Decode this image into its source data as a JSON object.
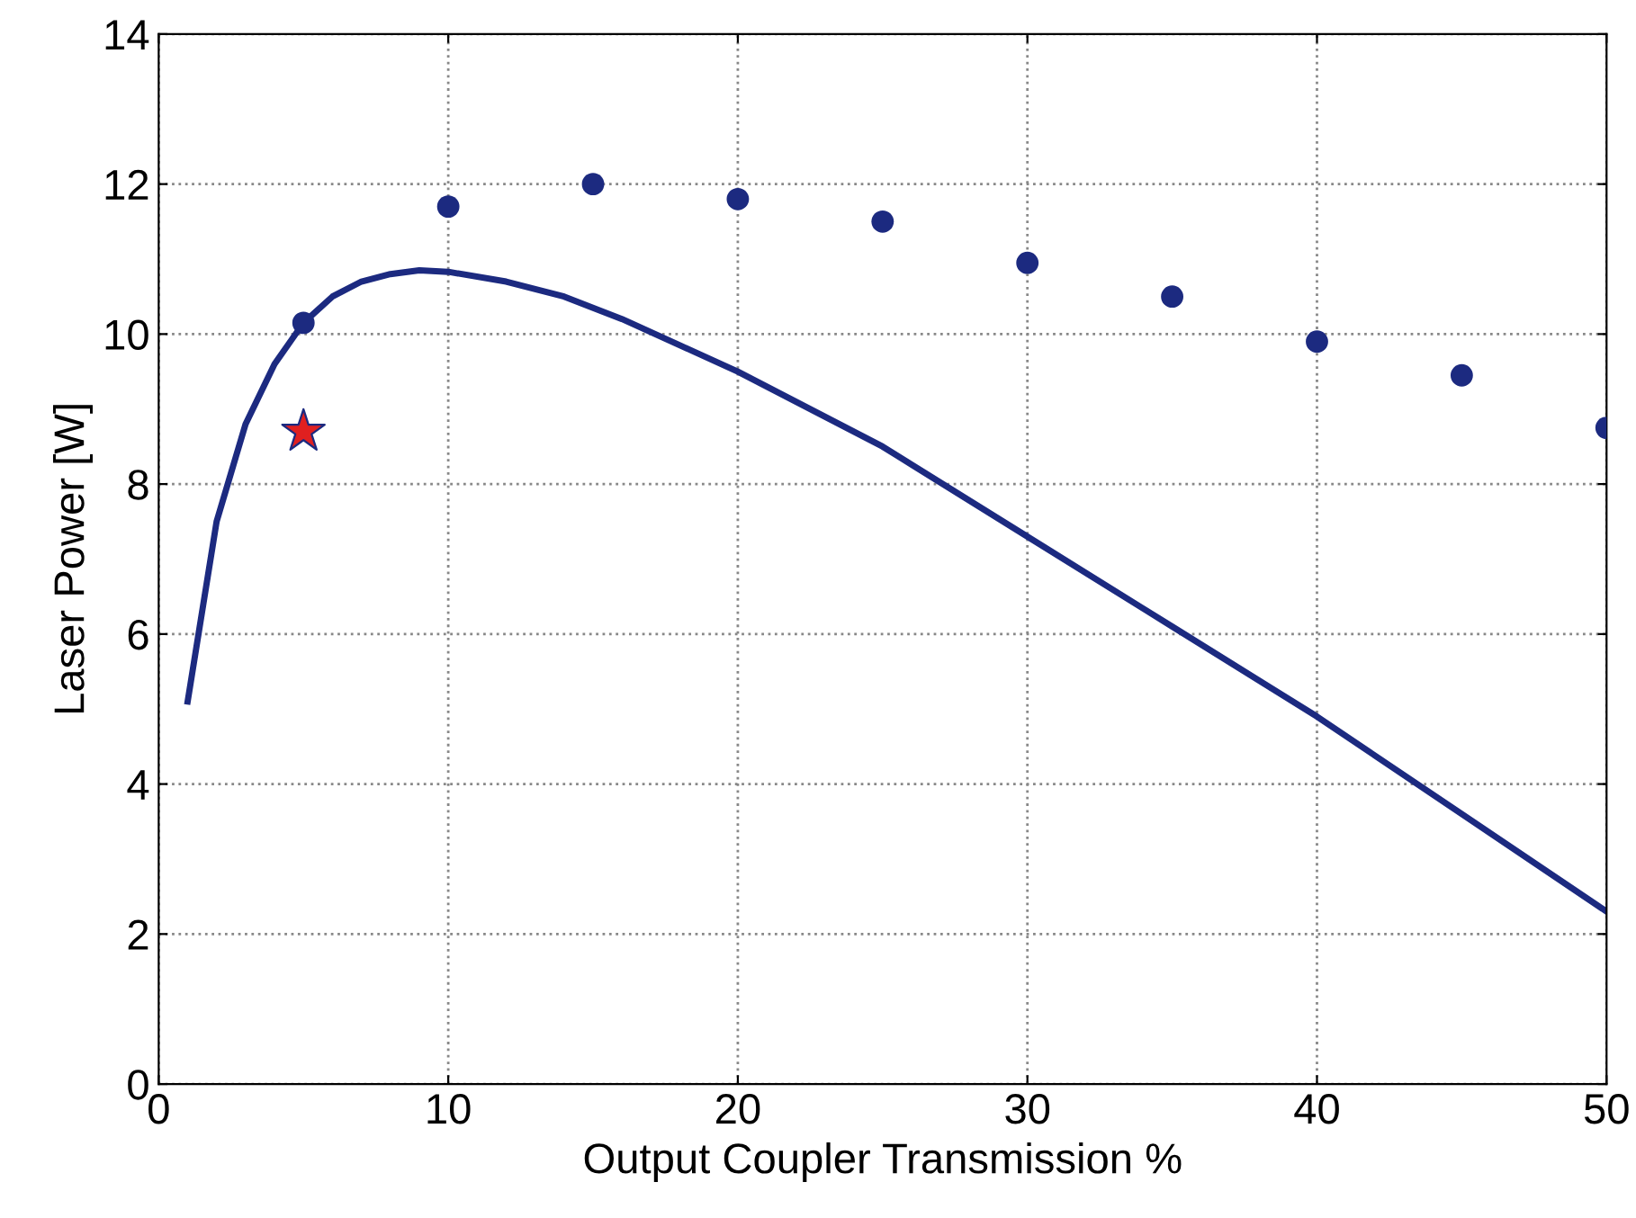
{
  "chart_data": {
    "type": "scatter",
    "xlabel": "Output Coupler Transmission %",
    "ylabel": "Laser Power [W]",
    "xlim": [
      0,
      50
    ],
    "xticks": [
      0,
      10,
      20,
      30,
      40,
      50
    ],
    "ylim": [
      0,
      14
    ],
    "yticks": [
      0,
      2,
      4,
      6,
      8,
      10,
      12,
      14
    ],
    "grid": true,
    "legend": false,
    "series": [
      {
        "type": "line",
        "color": "#1c2a80",
        "line_style": "solid",
        "marker": "none",
        "x": [
          1,
          2,
          3,
          4,
          5,
          6,
          7,
          8,
          9,
          10,
          12,
          14,
          16,
          18,
          20,
          25,
          30,
          35,
          40,
          45,
          50
        ],
        "values": [
          5.1,
          7.5,
          8.8,
          9.6,
          10.15,
          10.5,
          10.7,
          10.8,
          10.85,
          10.83,
          10.7,
          10.5,
          10.2,
          9.85,
          9.5,
          8.5,
          7.3,
          6.1,
          4.9,
          3.6,
          2.3
        ]
      },
      {
        "color": "#1c2a80",
        "marker": "circle",
        "x": [
          5,
          10,
          15,
          20,
          25,
          30,
          35,
          40,
          45,
          50
        ],
        "values": [
          10.15,
          11.7,
          12.0,
          11.8,
          11.5,
          10.95,
          10.5,
          9.9,
          9.45,
          8.75
        ]
      },
      {
        "color": "#e02020",
        "marker": "star",
        "x": [
          5
        ],
        "values": [
          8.7
        ]
      }
    ]
  }
}
